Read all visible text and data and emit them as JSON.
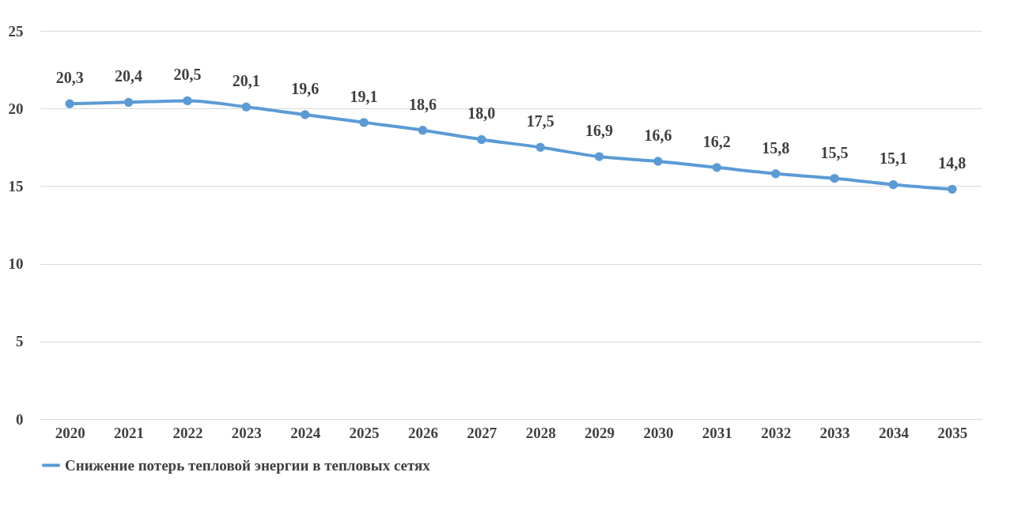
{
  "chart_data": {
    "type": "line",
    "categories": [
      "2020",
      "2021",
      "2022",
      "2023",
      "2024",
      "2025",
      "2026",
      "2027",
      "2028",
      "2029",
      "2030",
      "2031",
      "2032",
      "2033",
      "2034",
      "2035"
    ],
    "series": [
      {
        "name": "Снижение потерь тепловой энергии в тепловых сетях",
        "color": "#5b9bd5",
        "values": [
          20.3,
          20.4,
          20.5,
          20.1,
          19.6,
          19.1,
          18.6,
          18.0,
          17.5,
          16.9,
          16.6,
          16.2,
          15.8,
          15.5,
          15.1,
          14.8
        ],
        "value_labels": [
          "20,3",
          "20,4",
          "20,5",
          "20,1",
          "19,6",
          "19,1",
          "18,6",
          "18,0",
          "17,5",
          "16,9",
          "16,6",
          "16,2",
          "15,8",
          "15,5",
          "15,1",
          "14,8"
        ]
      }
    ],
    "ylim": [
      0,
      25
    ],
    "yticks": [
      0,
      5,
      10,
      15,
      20,
      25
    ],
    "grid": "y",
    "legend": "bottom",
    "marker": "circle",
    "line_style": "solid"
  }
}
